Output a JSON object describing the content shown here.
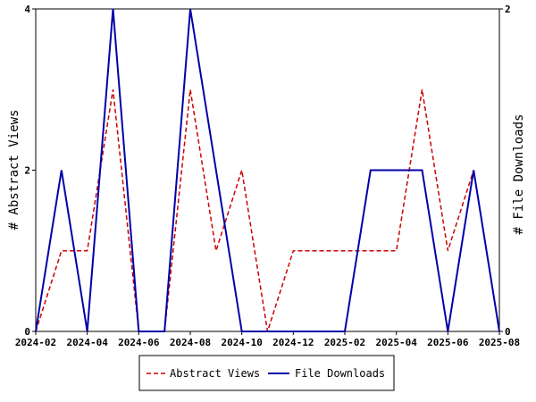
{
  "chart_data": {
    "type": "line",
    "title": "",
    "xlabel": "",
    "ylabel": "# Abstract Views",
    "y2label": "# File Downloads",
    "x": [
      "2024-02",
      "2024-03",
      "2024-04",
      "2024-05",
      "2024-06",
      "2024-07",
      "2024-08",
      "2024-09",
      "2024-10",
      "2024-11",
      "2024-12",
      "2025-01",
      "2025-02",
      "2025-03",
      "2025-04",
      "2025-05",
      "2025-06",
      "2025-07",
      "2025-08"
    ],
    "x_ticks": [
      "2024-02",
      "2024-04",
      "2024-06",
      "2024-08",
      "2024-10",
      "2024-12",
      "2025-02",
      "2025-04",
      "2025-06",
      "2025-08"
    ],
    "ylim": [
      0,
      4
    ],
    "y_ticks": [
      0,
      2,
      4
    ],
    "y2lim": [
      0,
      2
    ],
    "y2_ticks": [
      0,
      2
    ],
    "grid": false,
    "legend_position": "bottom-center",
    "series": [
      {
        "name": "Abstract Views",
        "axis": "left",
        "color": "#cc0000",
        "style": "dashed",
        "values": [
          0,
          1,
          1,
          3,
          0,
          0,
          3,
          1,
          2,
          0,
          1,
          1,
          1,
          1,
          1,
          3,
          1,
          2,
          0
        ]
      },
      {
        "name": "File Downloads",
        "axis": "right",
        "color": "#0000aa",
        "style": "solid",
        "values": [
          0,
          1,
          0,
          2,
          0,
          0,
          2,
          1,
          0,
          0,
          0,
          0,
          0,
          1,
          1,
          1,
          0,
          1,
          0
        ]
      }
    ]
  }
}
